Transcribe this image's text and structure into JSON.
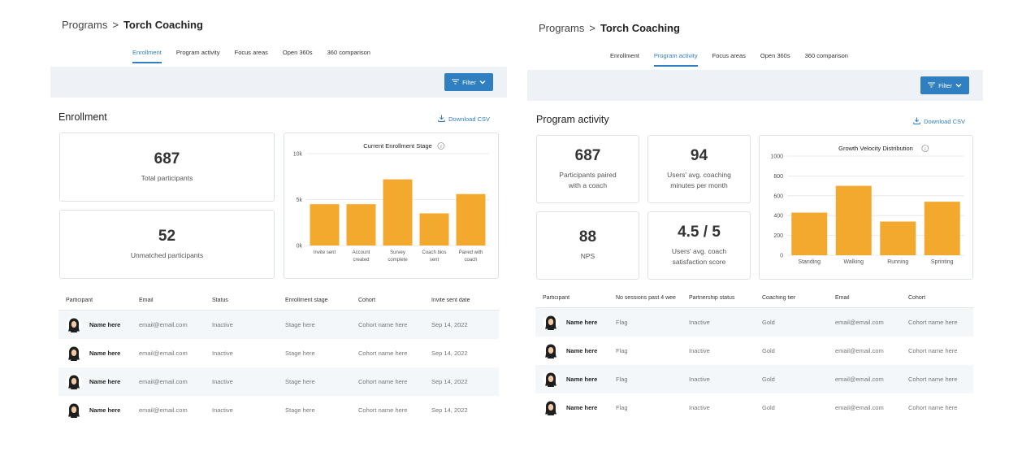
{
  "left": {
    "breadcrumb": {
      "root": "Programs",
      "sep": ">",
      "current": "Torch Coaching"
    },
    "tabs": [
      "Enrollment",
      "Program activity",
      "Focus areas",
      "Open 360s",
      "360 comparison"
    ],
    "active_tab": 0,
    "filter_label": "Filter",
    "section_title": "Enrollment",
    "download_label": "Download CSV",
    "stats": [
      {
        "value": "687",
        "label": "Total participants"
      },
      {
        "value": "52",
        "label": "Unmatched participants"
      }
    ],
    "table": {
      "headers": [
        "Participant",
        "Email",
        "Status",
        "Enrollment stage",
        "Cohort",
        "Invite sent date"
      ],
      "rows": [
        [
          "Name here",
          "email@email.com",
          "Inactive",
          "Stage here",
          "Cohort name here",
          "Sep 14, 2022"
        ],
        [
          "Name here",
          "email@email.com",
          "Inactive",
          "Stage here",
          "Cohort name here",
          "Sep 14, 2022"
        ],
        [
          "Name here",
          "email@email.com",
          "Inactive",
          "Stage here",
          "Cohort name here",
          "Sep 14, 2022"
        ],
        [
          "Name here",
          "email@email.com",
          "Inactive",
          "Stage here",
          "Cohort name here",
          "Sep 14, 2022"
        ]
      ]
    }
  },
  "right": {
    "breadcrumb": {
      "root": "Programs",
      "sep": ">",
      "current": "Torch Coaching"
    },
    "tabs": [
      "Enrollment",
      "Program activity",
      "Focus areas",
      "Open 360s",
      "360 comparison"
    ],
    "active_tab": 1,
    "filter_label": "Filter",
    "section_title": "Program activity",
    "download_label": "Download CSV",
    "stats": [
      {
        "value": "687",
        "label": "Participants paired\nwith a coach"
      },
      {
        "value": "94",
        "label": "Users' avg. coaching\nminutes per month"
      },
      {
        "value": "88",
        "label": "NPS"
      },
      {
        "value": "4.5 / 5",
        "label": "Users' avg. coach\nsatisfaction score"
      }
    ],
    "table": {
      "headers": [
        "Participant",
        "No sessions past 4 wee",
        "Partnership status",
        "Coaching tier",
        "Email",
        "Cohort"
      ],
      "rows": [
        [
          "Name here",
          "Flag",
          "Inactive",
          "Gold",
          "email@email.com",
          "Cohort name here"
        ],
        [
          "Name here",
          "Flag",
          "Inactive",
          "Gold",
          "email@email.com",
          "Cohort name here"
        ],
        [
          "Name here",
          "Flag",
          "Inactive",
          "Gold",
          "email@email.com",
          "Cohort name here"
        ],
        [
          "Name here",
          "Flag",
          "Inactive",
          "Gold",
          "email@email.com",
          "Cohort name here"
        ]
      ]
    }
  },
  "colors": {
    "accent": "#2f7fc1",
    "bar": "#f2a92e",
    "filterbar_bg": "#eef2f6"
  },
  "icons": {
    "filter": "filter-icon",
    "chevron": "chevron-down-icon",
    "download": "download-icon",
    "info": "info-icon",
    "avatar": "avatar-icon"
  },
  "chart_data": [
    {
      "type": "bar",
      "title": "Current Enrollment Stage",
      "categories": [
        "Invite sent",
        "Account\ncreated",
        "Survey\ncomplete",
        "Coach bios\nsent",
        "Paired with\ncoach"
      ],
      "values": [
        4500,
        4500,
        7200,
        3500,
        5600
      ],
      "ylim": [
        0,
        10000
      ],
      "yticks": [
        0,
        5000,
        10000
      ],
      "ytick_labels": [
        "0k",
        "5k",
        "10k"
      ],
      "grid": true
    },
    {
      "type": "bar",
      "title": "Growth Velocity Distribution",
      "categories": [
        "Standing",
        "Walking",
        "Running",
        "Sprinting"
      ],
      "values": [
        430,
        700,
        340,
        540
      ],
      "ylim": [
        0,
        1000
      ],
      "yticks": [
        0,
        200,
        400,
        600,
        800,
        1000
      ],
      "ytick_labels": [
        "0",
        "200",
        "400",
        "600",
        "800",
        "1000"
      ],
      "grid": true
    }
  ]
}
